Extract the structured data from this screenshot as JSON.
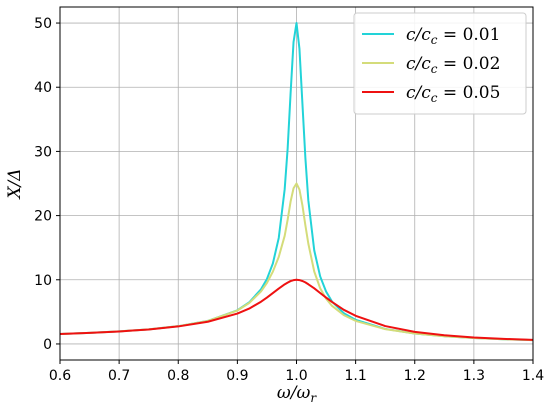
{
  "chart_data": {
    "type": "line",
    "title": "",
    "xlabel": "ω/ω",
    "xlabel_sub": "r",
    "ylabel": "X/Δ",
    "xlim": [
      0.6,
      1.4
    ],
    "ylim": [
      -2.5,
      52.5
    ],
    "xticks": [
      0.6,
      0.7,
      0.8,
      0.9,
      1.0,
      1.1,
      1.2,
      1.3,
      1.4
    ],
    "xtick_labels": [
      "0.6",
      "0.7",
      "0.8",
      "0.9",
      "1.0",
      "1.1",
      "1.2",
      "1.3",
      "1.4"
    ],
    "yticks": [
      0,
      10,
      20,
      30,
      40,
      50
    ],
    "ytick_labels": [
      "0",
      "10",
      "20",
      "30",
      "40",
      "50"
    ],
    "grid": true,
    "legend_position": "top-right",
    "x": [
      0.6,
      0.65,
      0.7,
      0.75,
      0.8,
      0.85,
      0.9,
      0.92,
      0.94,
      0.95,
      0.96,
      0.97,
      0.98,
      0.985,
      0.99,
      0.995,
      1.0,
      1.005,
      1.01,
      1.015,
      1.02,
      1.03,
      1.04,
      1.05,
      1.06,
      1.08,
      1.1,
      1.15,
      1.2,
      1.25,
      1.3,
      1.35,
      1.4
    ],
    "series": [
      {
        "legend": {
          "prefix": "c/c",
          "sub": "c",
          "suffix": " = 0.01"
        },
        "color": "#22d3d8",
        "values": [
          1.56,
          1.73,
          1.96,
          2.28,
          2.77,
          3.59,
          5.25,
          6.48,
          8.52,
          10.13,
          12.54,
          16.52,
          24.11,
          30.41,
          39.06,
          47.05,
          50.0,
          45.97,
          37.48,
          29.0,
          22.36,
          14.58,
          10.54,
          8.18,
          6.61,
          4.79,
          3.75,
          2.34,
          1.63,
          1.21,
          0.93,
          0.74,
          0.6
        ]
      },
      {
        "legend": {
          "prefix": "c/c",
          "sub": "c",
          "suffix": " = 0.02"
        },
        "color": "#d4dc7a",
        "values": [
          1.56,
          1.73,
          1.96,
          2.28,
          2.77,
          3.58,
          5.21,
          6.38,
          8.18,
          9.51,
          11.26,
          13.57,
          16.85,
          19.34,
          22.19,
          24.26,
          25.0,
          24.06,
          21.61,
          18.49,
          15.63,
          11.29,
          8.68,
          7.06,
          5.94,
          4.49,
          3.59,
          2.31,
          1.62,
          1.2,
          0.93,
          0.74,
          0.6
        ]
      },
      {
        "legend": {
          "prefix": "c/c",
          "sub": "c",
          "suffix": " = 0.05"
        },
        "color": "#ee1111",
        "values": [
          1.56,
          1.72,
          1.95,
          2.26,
          2.73,
          3.46,
          4.74,
          5.51,
          6.58,
          7.23,
          7.93,
          8.63,
          9.29,
          9.56,
          9.8,
          9.94,
          10.0,
          9.95,
          9.81,
          9.59,
          9.3,
          8.67,
          7.94,
          7.23,
          6.55,
          5.32,
          4.39,
          2.79,
          1.88,
          1.35,
          1.01,
          0.79,
          0.63
        ]
      }
    ]
  }
}
